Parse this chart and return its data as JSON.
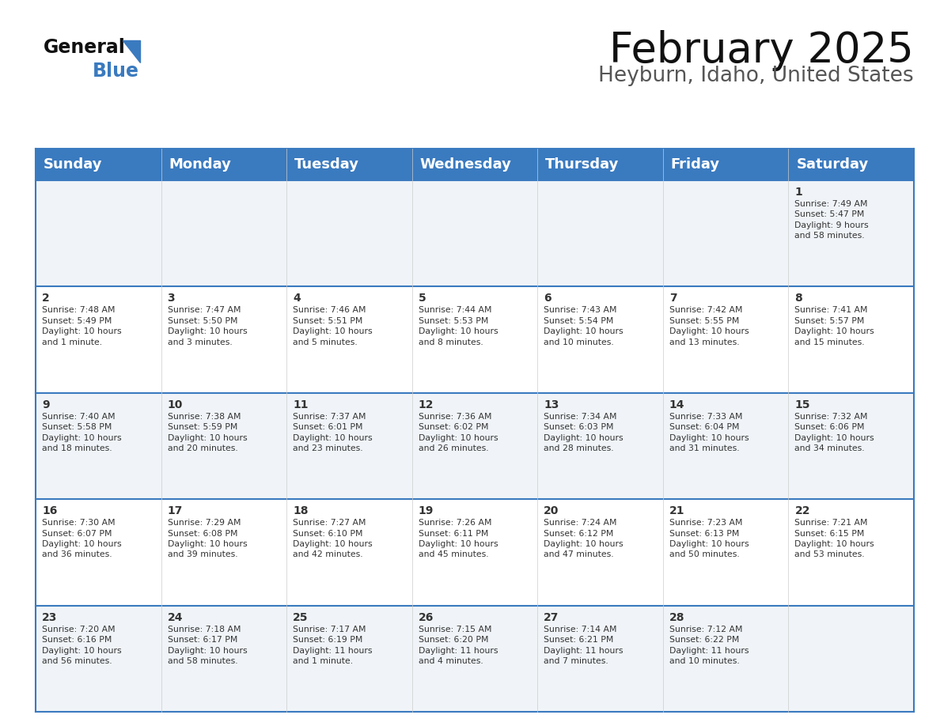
{
  "title": "February 2025",
  "subtitle": "Heyburn, Idaho, United States",
  "header_bg": "#3a7abf",
  "header_text": "#ffffff",
  "cell_bg_even": "#f0f4f8",
  "cell_bg_odd": "#ffffff",
  "grid_line_color": "#3a7abf",
  "border_color": "#cccccc",
  "text_color": "#333333",
  "day_names": [
    "Sunday",
    "Monday",
    "Tuesday",
    "Wednesday",
    "Thursday",
    "Friday",
    "Saturday"
  ],
  "title_fontsize": 38,
  "subtitle_fontsize": 19,
  "header_fontsize": 13,
  "day_num_fontsize": 10,
  "cell_fontsize": 7.8,
  "days": [
    {
      "day": 1,
      "col": 6,
      "row": 0,
      "sunrise": "7:49 AM",
      "sunset": "5:47 PM",
      "daylight": "9 hours\nand 58 minutes."
    },
    {
      "day": 2,
      "col": 0,
      "row": 1,
      "sunrise": "7:48 AM",
      "sunset": "5:49 PM",
      "daylight": "10 hours\nand 1 minute."
    },
    {
      "day": 3,
      "col": 1,
      "row": 1,
      "sunrise": "7:47 AM",
      "sunset": "5:50 PM",
      "daylight": "10 hours\nand 3 minutes."
    },
    {
      "day": 4,
      "col": 2,
      "row": 1,
      "sunrise": "7:46 AM",
      "sunset": "5:51 PM",
      "daylight": "10 hours\nand 5 minutes."
    },
    {
      "day": 5,
      "col": 3,
      "row": 1,
      "sunrise": "7:44 AM",
      "sunset": "5:53 PM",
      "daylight": "10 hours\nand 8 minutes."
    },
    {
      "day": 6,
      "col": 4,
      "row": 1,
      "sunrise": "7:43 AM",
      "sunset": "5:54 PM",
      "daylight": "10 hours\nand 10 minutes."
    },
    {
      "day": 7,
      "col": 5,
      "row": 1,
      "sunrise": "7:42 AM",
      "sunset": "5:55 PM",
      "daylight": "10 hours\nand 13 minutes."
    },
    {
      "day": 8,
      "col": 6,
      "row": 1,
      "sunrise": "7:41 AM",
      "sunset": "5:57 PM",
      "daylight": "10 hours\nand 15 minutes."
    },
    {
      "day": 9,
      "col": 0,
      "row": 2,
      "sunrise": "7:40 AM",
      "sunset": "5:58 PM",
      "daylight": "10 hours\nand 18 minutes."
    },
    {
      "day": 10,
      "col": 1,
      "row": 2,
      "sunrise": "7:38 AM",
      "sunset": "5:59 PM",
      "daylight": "10 hours\nand 20 minutes."
    },
    {
      "day": 11,
      "col": 2,
      "row": 2,
      "sunrise": "7:37 AM",
      "sunset": "6:01 PM",
      "daylight": "10 hours\nand 23 minutes."
    },
    {
      "day": 12,
      "col": 3,
      "row": 2,
      "sunrise": "7:36 AM",
      "sunset": "6:02 PM",
      "daylight": "10 hours\nand 26 minutes."
    },
    {
      "day": 13,
      "col": 4,
      "row": 2,
      "sunrise": "7:34 AM",
      "sunset": "6:03 PM",
      "daylight": "10 hours\nand 28 minutes."
    },
    {
      "day": 14,
      "col": 5,
      "row": 2,
      "sunrise": "7:33 AM",
      "sunset": "6:04 PM",
      "daylight": "10 hours\nand 31 minutes."
    },
    {
      "day": 15,
      "col": 6,
      "row": 2,
      "sunrise": "7:32 AM",
      "sunset": "6:06 PM",
      "daylight": "10 hours\nand 34 minutes."
    },
    {
      "day": 16,
      "col": 0,
      "row": 3,
      "sunrise": "7:30 AM",
      "sunset": "6:07 PM",
      "daylight": "10 hours\nand 36 minutes."
    },
    {
      "day": 17,
      "col": 1,
      "row": 3,
      "sunrise": "7:29 AM",
      "sunset": "6:08 PM",
      "daylight": "10 hours\nand 39 minutes."
    },
    {
      "day": 18,
      "col": 2,
      "row": 3,
      "sunrise": "7:27 AM",
      "sunset": "6:10 PM",
      "daylight": "10 hours\nand 42 minutes."
    },
    {
      "day": 19,
      "col": 3,
      "row": 3,
      "sunrise": "7:26 AM",
      "sunset": "6:11 PM",
      "daylight": "10 hours\nand 45 minutes."
    },
    {
      "day": 20,
      "col": 4,
      "row": 3,
      "sunrise": "7:24 AM",
      "sunset": "6:12 PM",
      "daylight": "10 hours\nand 47 minutes."
    },
    {
      "day": 21,
      "col": 5,
      "row": 3,
      "sunrise": "7:23 AM",
      "sunset": "6:13 PM",
      "daylight": "10 hours\nand 50 minutes."
    },
    {
      "day": 22,
      "col": 6,
      "row": 3,
      "sunrise": "7:21 AM",
      "sunset": "6:15 PM",
      "daylight": "10 hours\nand 53 minutes."
    },
    {
      "day": 23,
      "col": 0,
      "row": 4,
      "sunrise": "7:20 AM",
      "sunset": "6:16 PM",
      "daylight": "10 hours\nand 56 minutes."
    },
    {
      "day": 24,
      "col": 1,
      "row": 4,
      "sunrise": "7:18 AM",
      "sunset": "6:17 PM",
      "daylight": "10 hours\nand 58 minutes."
    },
    {
      "day": 25,
      "col": 2,
      "row": 4,
      "sunrise": "7:17 AM",
      "sunset": "6:19 PM",
      "daylight": "11 hours\nand 1 minute."
    },
    {
      "day": 26,
      "col": 3,
      "row": 4,
      "sunrise": "7:15 AM",
      "sunset": "6:20 PM",
      "daylight": "11 hours\nand 4 minutes."
    },
    {
      "day": 27,
      "col": 4,
      "row": 4,
      "sunrise": "7:14 AM",
      "sunset": "6:21 PM",
      "daylight": "11 hours\nand 7 minutes."
    },
    {
      "day": 28,
      "col": 5,
      "row": 4,
      "sunrise": "7:12 AM",
      "sunset": "6:22 PM",
      "daylight": "11 hours\nand 10 minutes."
    }
  ]
}
